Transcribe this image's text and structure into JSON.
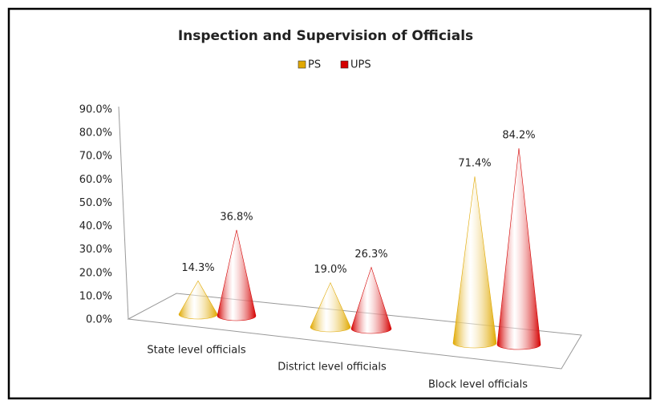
{
  "chart_data": {
    "type": "cone",
    "title": "Inspection and Supervision of Officials",
    "categories": [
      "State level officials",
      "District level officials",
      "Block level officials"
    ],
    "series": [
      {
        "name": "PS",
        "color": "#e0a800",
        "values": [
          14.3,
          19.0,
          71.4
        ],
        "value_labels": [
          "14.3%",
          "19.0%",
          "71.4%"
        ]
      },
      {
        "name": "UPS",
        "color": "#d40000",
        "values": [
          36.8,
          26.3,
          84.2
        ],
        "value_labels": [
          "36.8%",
          "26.3%",
          "84.2%"
        ]
      }
    ],
    "ylim": [
      0,
      90
    ],
    "yticks": [
      {
        "value": 0,
        "label": "0.0%"
      },
      {
        "value": 10,
        "label": "10.0%"
      },
      {
        "value": 20,
        "label": "20.0%"
      },
      {
        "value": 30,
        "label": "30.0%"
      },
      {
        "value": 40,
        "label": "40.0%"
      },
      {
        "value": 50,
        "label": "50.0%"
      },
      {
        "value": 60,
        "label": "60.0%"
      },
      {
        "value": 70,
        "label": "70.0%"
      },
      {
        "value": 80,
        "label": "80.0%"
      },
      {
        "value": 90,
        "label": "90.0%"
      }
    ],
    "legend": "top"
  }
}
